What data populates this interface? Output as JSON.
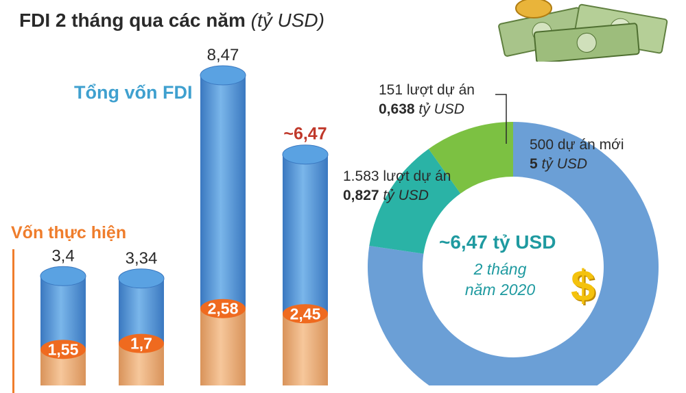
{
  "title": "FDI 2 tháng qua các năm",
  "title_unit": "(tỷ USD)",
  "legend": {
    "total_label": "Tổng vốn FDI",
    "disbursed_label": "Vốn thực hiện"
  },
  "chart_data": [
    {
      "type": "bar",
      "title": "FDI 2 tháng qua các năm (tỷ USD)",
      "series": [
        {
          "name": "Tổng vốn FDI",
          "values": [
            3.4,
            3.34,
            8.47,
            6.47
          ],
          "labels": [
            "3,4",
            "3,34",
            "8,47",
            "~6,47"
          ]
        },
        {
          "name": "Vốn thực hiện",
          "values": [
            1.55,
            1.7,
            2.58,
            2.45
          ],
          "labels": [
            "1,55",
            "1,7",
            "2,58",
            "2,45"
          ]
        }
      ],
      "ylim": [
        0,
        9
      ]
    },
    {
      "type": "pie",
      "center_total": "~6,47 tỷ USD",
      "center_sub_1": "2 tháng",
      "center_sub_2": "năm 2020",
      "slices": [
        {
          "label": "500 dự án mới",
          "amount": "5",
          "value": 5.0,
          "color": "#6b9fd6"
        },
        {
          "label": "1.583 lượt dự án",
          "amount": "0,827",
          "value": 0.827,
          "color": "#2ab3a6"
        },
        {
          "label": "151 lượt dự án",
          "amount": "0,638",
          "value": 0.638,
          "color": "#7cc142"
        }
      ],
      "amount_unit": "tỷ USD"
    }
  ],
  "colors": {
    "bar_blue": "#4a8fd4",
    "bar_orange": "#ef7d2c",
    "highlight_red": "#c0392b"
  }
}
